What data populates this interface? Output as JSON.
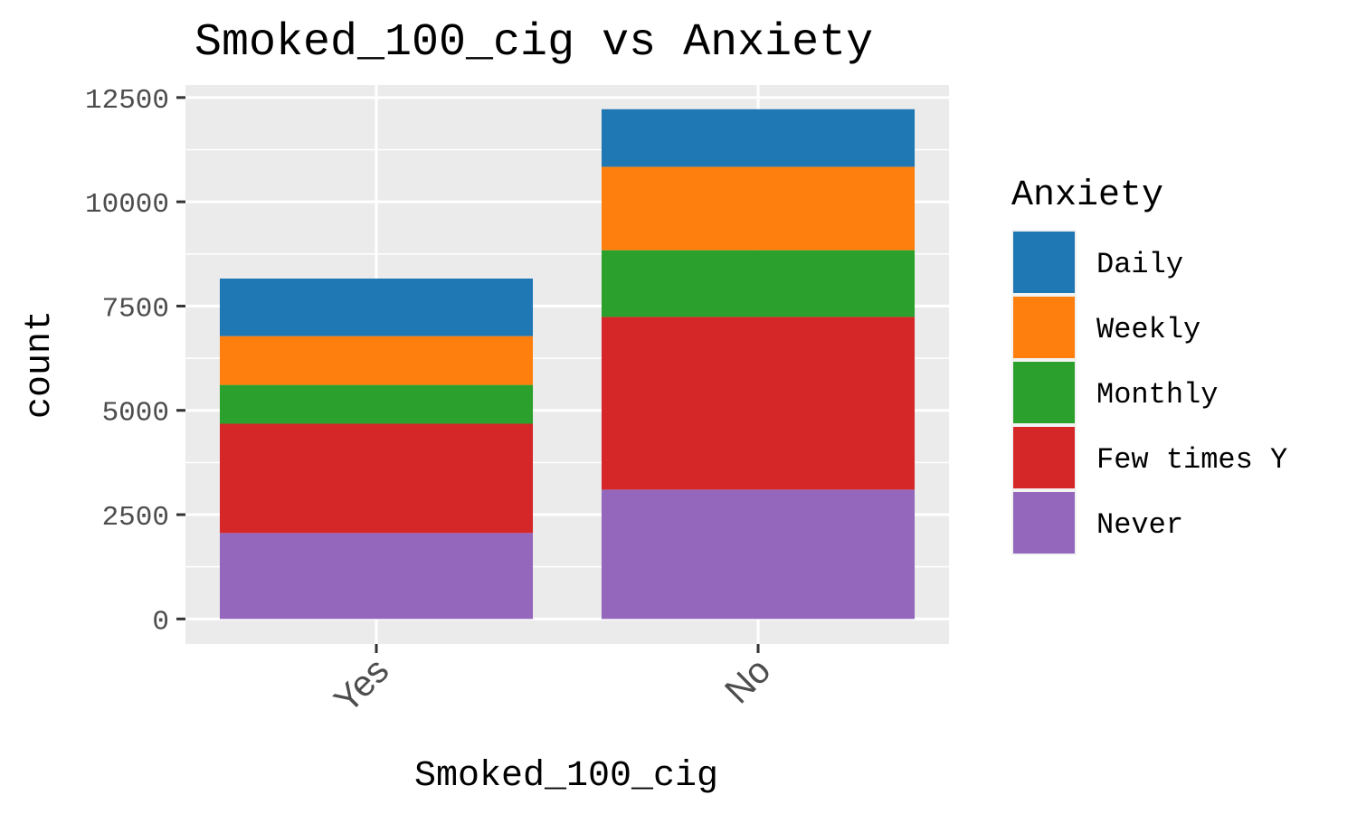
{
  "chart_data": {
    "type": "bar",
    "stacked": true,
    "title": "Smoked_100_cig vs Anxiety",
    "xlabel": "Smoked_100_cig",
    "ylabel": "count",
    "ylim": [
      -600,
      12800
    ],
    "yticks": [
      0,
      2500,
      5000,
      7500,
      10000,
      12500
    ],
    "ytick_labels": [
      "0",
      "2500",
      "5000",
      "7500",
      "10000",
      "12500"
    ],
    "categories": [
      "Yes",
      "No"
    ],
    "legend_title": "Anxiety",
    "legend_position": "right",
    "grid": true,
    "series": [
      {
        "name": "Daily",
        "color": "#1f77b4",
        "values": [
          1380,
          1380
        ]
      },
      {
        "name": "Weekly",
        "color": "#ff7f0e",
        "values": [
          1170,
          2000
        ]
      },
      {
        "name": "Monthly",
        "color": "#2ca02c",
        "values": [
          930,
          1600
        ]
      },
      {
        "name": "Few times Y",
        "color": "#d62728",
        "values": [
          2620,
          4140
        ]
      },
      {
        "name": "Never",
        "color": "#9467bd",
        "values": [
          2060,
          3100
        ]
      }
    ]
  }
}
